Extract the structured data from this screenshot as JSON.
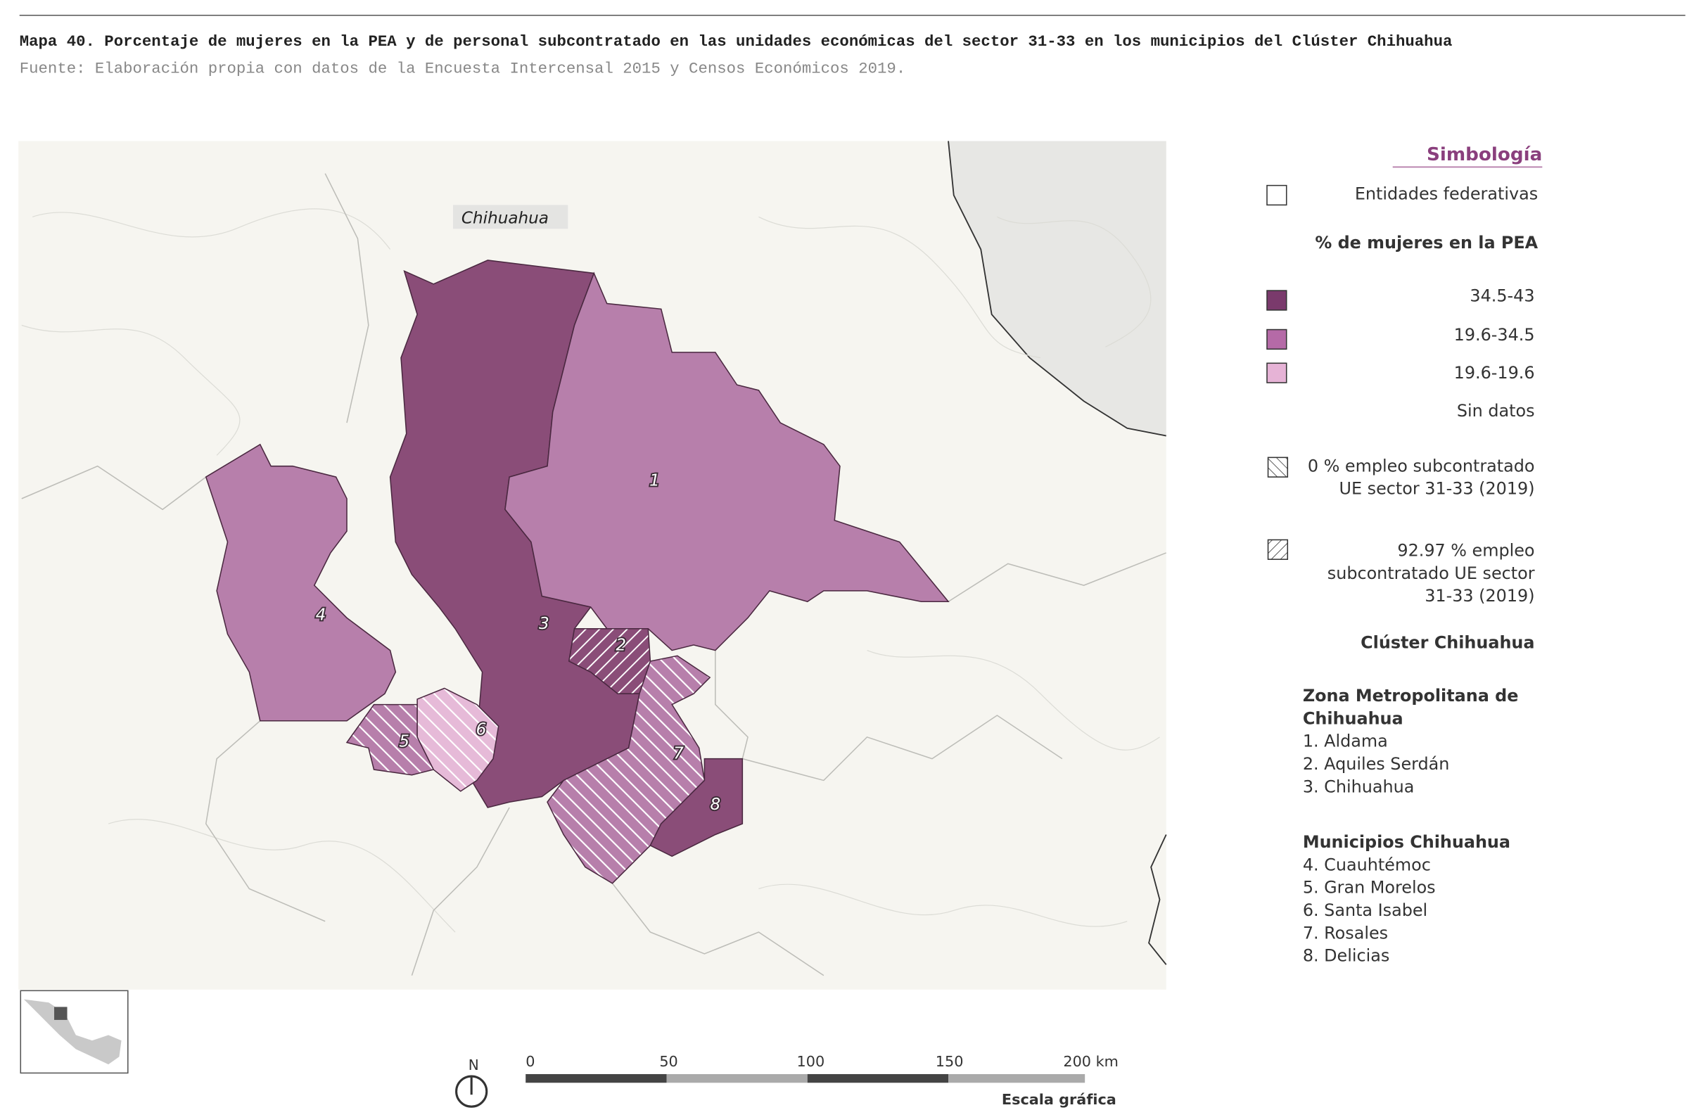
{
  "header": {
    "title": "Mapa 40. Porcentaje de mujeres en la PEA y de personal subcontratado en las unidades económicas del sector 31-33 en los municipios del Clúster Chihuahua",
    "source": "Fuente: Elaboración propia con datos de la Encuesta Intercensal 2015 y Censos Económicos 2019."
  },
  "map": {
    "state_label": "Chihuahua",
    "regions": [
      "1",
      "2",
      "3",
      "4",
      "5",
      "6",
      "7",
      "8"
    ]
  },
  "legend": {
    "title": "Simbología",
    "entities": "Entidades federativas",
    "pea_title": "% de mujeres en la PEA",
    "pea_classes": [
      "34.5-43",
      "19.6-34.5",
      "19.6-19.6",
      "Sin datos"
    ],
    "hatch_zero": [
      "0 % empleo subcontratado",
      "UE sector 31-33 (2019)"
    ],
    "hatch_high": [
      "92.97 % empleo",
      "subcontratado UE sector",
      "31-33 (2019)"
    ],
    "cluster_title": "Clúster Chihuahua",
    "zm_title": [
      "Zona Metropolitana de",
      "Chihuahua"
    ],
    "zm_items": [
      "1. Aldama",
      "2. Aquiles Serdán",
      "3. Chihuahua"
    ],
    "mun_title": "Municipios Chihuahua",
    "mun_items": [
      "4. Cuauhtémoc",
      "5. Gran Morelos",
      "6. Santa Isabel",
      "7. Rosales",
      "8. Delicias"
    ]
  },
  "scale": {
    "north": "N",
    "ticks": [
      "0",
      "50",
      "100",
      "150",
      "200 km"
    ],
    "caption": "Escala gráfica"
  }
}
